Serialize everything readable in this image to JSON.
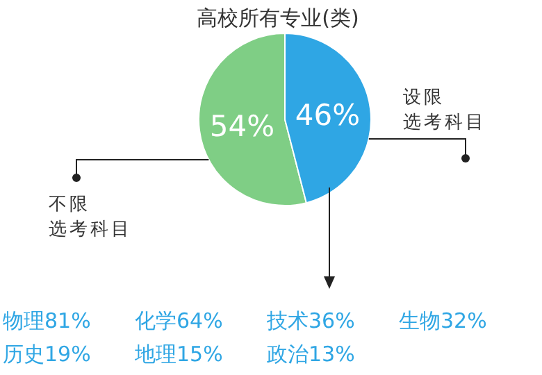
{
  "chart_data": {
    "type": "pie",
    "title": "高校所有专业(类)",
    "categories": [
      "不限选考科目",
      "设限选考科目"
    ],
    "values": [
      54,
      46
    ],
    "colors": [
      "#7fce85",
      "#2fa6e4"
    ],
    "value_labels": [
      "54%",
      "46%"
    ],
    "annotations": [
      "物理81%",
      "化学64%",
      "技术36%",
      "生物32%",
      "历史19%",
      "地理15%",
      "政治13%"
    ]
  }
}
